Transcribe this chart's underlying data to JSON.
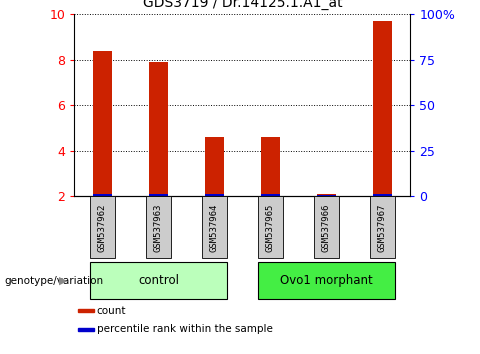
{
  "title": "GDS3719 / Dr.14125.1.A1_at",
  "samples": [
    "GSM537962",
    "GSM537963",
    "GSM537964",
    "GSM537965",
    "GSM537966",
    "GSM537967"
  ],
  "red_values": [
    8.4,
    7.9,
    4.6,
    4.6,
    2.1,
    9.7
  ],
  "blue_values": [
    0.13,
    0.13,
    0.09,
    0.1,
    0.06,
    0.13
  ],
  "ylim_left": [
    2,
    10
  ],
  "ylim_right": [
    0,
    100
  ],
  "yticks_left": [
    2,
    4,
    6,
    8,
    10
  ],
  "yticks_right": [
    0,
    25,
    50,
    75,
    100
  ],
  "groups": [
    {
      "label": "control",
      "indices": [
        0,
        1,
        2
      ],
      "color": "#bbffbb"
    },
    {
      "label": "Ovo1 morphant",
      "indices": [
        3,
        4,
        5
      ],
      "color": "#44ee44"
    }
  ],
  "bar_width": 0.35,
  "red_color": "#cc2200",
  "blue_color": "#0000cc",
  "sample_box_color": "#cccccc",
  "legend_items": [
    {
      "label": "count",
      "color": "#cc2200"
    },
    {
      "label": "percentile rank within the sample",
      "color": "#0000cc"
    }
  ],
  "genotype_label": "genotype/variation"
}
